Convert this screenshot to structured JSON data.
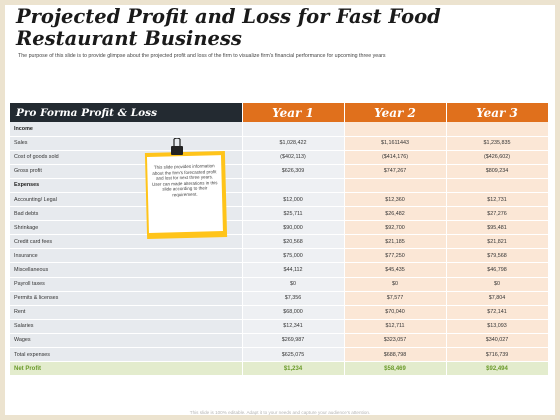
{
  "title_line1": "Projected Profit and Loss for Fast Food",
  "title_line2": "Restaurant Business",
  "subtitle": "The purpose of this slide is to provide glimpse about the projected profit and loss of the firm to visualize firm's financial performance for upcoming three years",
  "table": {
    "header": [
      "Pro Forma Profit & Loss",
      "Year 1",
      "Year 2",
      "Year 3"
    ],
    "rows": [
      {
        "label": "Income",
        "y1": "",
        "y2": "",
        "y3": "",
        "section": true
      },
      {
        "label": "Sales",
        "y1": "$1,028,422",
        "y2": "$1,1611443",
        "y3": "$1,235,835"
      },
      {
        "label": "Cost of goods sold",
        "y1": "($402,113)",
        "y2": "($414,176)",
        "y3": "($426,602)"
      },
      {
        "label": "Gross profit",
        "y1": "$626,309",
        "y2": "$747,267",
        "y3": "$809,234"
      },
      {
        "label": "Expenses",
        "y1": "",
        "y2": "",
        "y3": "",
        "section": true
      },
      {
        "label": "Accounting/ Legal",
        "y1": "$12,000",
        "y2": "$12,360",
        "y3": "$12,731"
      },
      {
        "label": "Bad debts",
        "y1": "$25,711",
        "y2": "$26,482",
        "y3": "$27,276"
      },
      {
        "label": "Shrinkage",
        "y1": "$90,000",
        "y2": "$92,700",
        "y3": "$95,481"
      },
      {
        "label": "Credit card fees",
        "y1": "$20,568",
        "y2": "$21,185",
        "y3": "$21,821"
      },
      {
        "label": "Insurance",
        "y1": "$75,000",
        "y2": "$77,250",
        "y3": "$79,568"
      },
      {
        "label": "Miscellaneous",
        "y1": "$44,112",
        "y2": "$45,435",
        "y3": "$46,798"
      },
      {
        "label": "Payroll taxes",
        "y1": "$0",
        "y2": "$0",
        "y3": "$0"
      },
      {
        "label": "Permits & licenses",
        "y1": "$7,356",
        "y2": "$7,577",
        "y3": "$7,804"
      },
      {
        "label": "Rent",
        "y1": "$68,000",
        "y2": "$70,040",
        "y3": "$72,141"
      },
      {
        "label": "Salaries",
        "y1": "$12,341",
        "y2": "$12,711",
        "y3": "$13,093"
      },
      {
        "label": "Wages",
        "y1": "$269,987",
        "y2": "$323,057",
        "y3": "$340,027"
      },
      {
        "label": "Total expenses",
        "y1": "$625,075",
        "y2": "$688,798",
        "y3": "$716,739"
      },
      {
        "label": "Net Profit",
        "y1": "$1,234",
        "y2": "$58,469",
        "y3": "$92,494",
        "net": true
      }
    ]
  },
  "note_text": "This slide provides information about the firm's forecasted profit and lost for next three years. User can made alterations in this slide according to their requirement.",
  "footer": "This slide is 100% editable. Adapt it to your needs and capture your audience's attention.",
  "colors": {
    "header_dark": "#232a31",
    "header_orange": "#e0701c",
    "net_profit_green": "#6a9a2a",
    "note_yellow": "#ffc41a"
  },
  "icons": [
    "binder-clip-icon"
  ]
}
